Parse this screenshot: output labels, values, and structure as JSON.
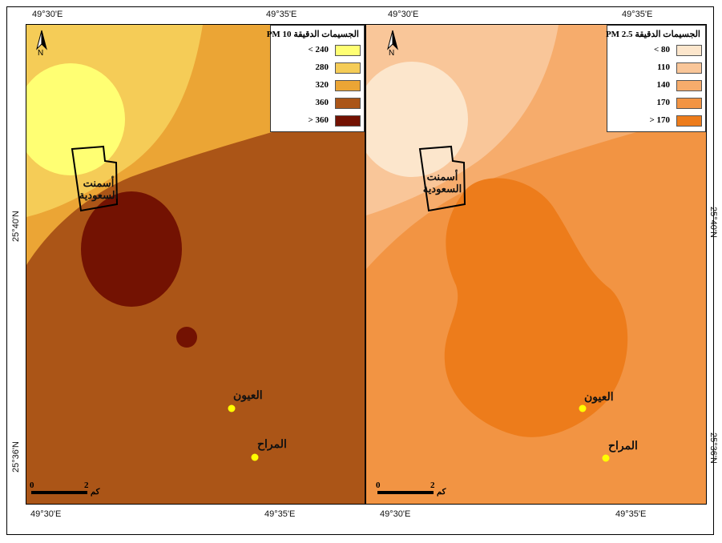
{
  "coordinates": {
    "lon_left_1": "49°30'E",
    "lon_left_2": "49°35'E",
    "lon_right_1": "49°30'E",
    "lon_right_2": "49°35'E",
    "lat_1": "25°40'N",
    "lat_2": "25°36'N"
  },
  "maps": [
    {
      "legend_title": "الجسيمات الدقيقة PM 10",
      "legend": [
        {
          "label": "240 >",
          "color": "#ffff73"
        },
        {
          "label": "280",
          "color": "#f5cc57"
        },
        {
          "label": "320",
          "color": "#eba535"
        },
        {
          "label": "360",
          "color": "#ab5517"
        },
        {
          "label": "360 <",
          "color": "#731202"
        }
      ],
      "north": "N",
      "scale": {
        "zero": "0",
        "two": "2",
        "unit": "كم"
      },
      "factory_label_line1": "أسمنت",
      "factory_label_line2": "السعودية",
      "places": [
        {
          "name": "العيون",
          "point_color": "#ffff00"
        },
        {
          "name": "المراح",
          "point_color": "#ffff00"
        }
      ]
    },
    {
      "legend_title": "الجسيمات الدقيقة PM 2.5",
      "legend": [
        {
          "label": "80 >",
          "color": "#fce6cc"
        },
        {
          "label": "110",
          "color": "#f9c699"
        },
        {
          "label": "140",
          "color": "#f6ac6c"
        },
        {
          "label": "170",
          "color": "#f29443"
        },
        {
          "label": "170 <",
          "color": "#ed7c1b"
        }
      ],
      "north": "N",
      "scale": {
        "zero": "0",
        "two": "2",
        "unit": "كم"
      },
      "factory_label_line1": "أسمنت",
      "factory_label_line2": "السعودية",
      "places": [
        {
          "name": "العيون",
          "point_color": "#ffff00"
        },
        {
          "name": "المراح",
          "point_color": "#ffff00"
        }
      ]
    }
  ]
}
